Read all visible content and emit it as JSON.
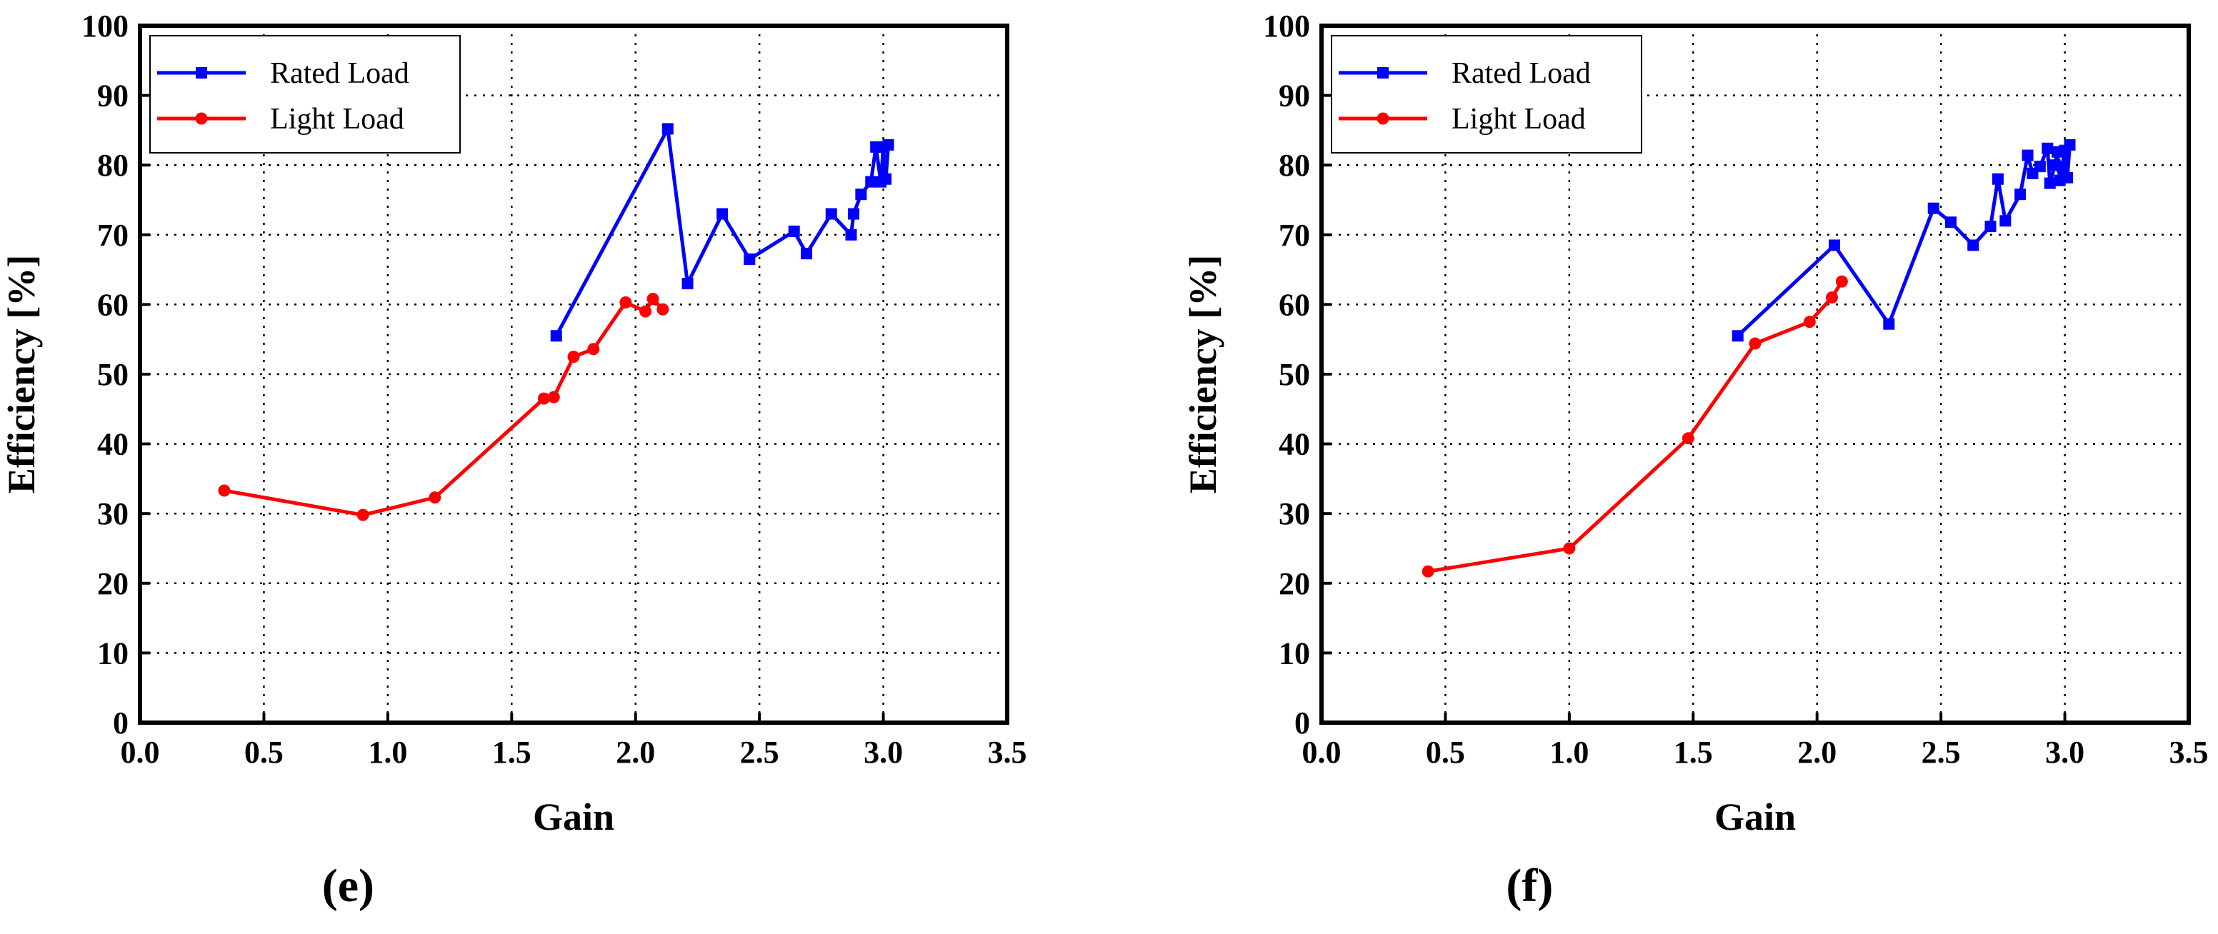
{
  "chart_data": [
    {
      "type": "line",
      "panel_label": "(e)",
      "xlabel": "Gain",
      "ylabel": "Efficiency [%]",
      "xlim": [
        0.0,
        3.5
      ],
      "ylim": [
        0,
        100
      ],
      "xticks": [
        "0.0",
        "0.5",
        "1.0",
        "1.5",
        "2.0",
        "2.5",
        "3.0",
        "3.5"
      ],
      "yticks": [
        "0",
        "10",
        "20",
        "30",
        "40",
        "50",
        "60",
        "70",
        "80",
        "90",
        "100"
      ],
      "grid": true,
      "legend_position": "top-left",
      "series": [
        {
          "name": "Rated Load",
          "color": "#0000ff",
          "marker": "square",
          "x": [
            1.68,
            2.13,
            2.21,
            2.35,
            2.46,
            2.64,
            2.69,
            2.79,
            2.87,
            2.88,
            2.91,
            2.95,
            2.97,
            2.99,
            3.0,
            3.01,
            3.02
          ],
          "y": [
            55.5,
            85.2,
            63.0,
            73.0,
            66.5,
            70.5,
            67.3,
            73.0,
            70.0,
            73.0,
            75.8,
            77.6,
            82.6,
            77.6,
            82.6,
            78.0,
            82.9
          ]
        },
        {
          "name": "Light Load",
          "color": "#ff0000",
          "marker": "circle",
          "x": [
            0.34,
            0.9,
            1.19,
            1.63,
            1.67,
            1.75,
            1.83,
            1.96,
            2.04,
            2.07,
            2.11
          ],
          "y": [
            33.3,
            29.8,
            32.3,
            46.5,
            46.7,
            52.5,
            53.6,
            60.3,
            59.0,
            60.8,
            59.3
          ]
        }
      ]
    },
    {
      "type": "line",
      "panel_label": "(f)",
      "xlabel": "Gain",
      "ylabel": "Efficiency [%]",
      "xlim": [
        0.0,
        3.5
      ],
      "ylim": [
        0,
        100
      ],
      "xticks": [
        "0.0",
        "0.5",
        "1.0",
        "1.5",
        "2.0",
        "2.5",
        "3.0",
        "3.5"
      ],
      "yticks": [
        "0",
        "10",
        "20",
        "30",
        "40",
        "50",
        "60",
        "70",
        "80",
        "90",
        "100"
      ],
      "grid": true,
      "legend_position": "top-left",
      "series": [
        {
          "name": "Rated Load",
          "color": "#0000ff",
          "marker": "square",
          "x": [
            1.68,
            2.07,
            2.29,
            2.47,
            2.54,
            2.63,
            2.7,
            2.73,
            2.76,
            2.82,
            2.85,
            2.87,
            2.9,
            2.93,
            2.94,
            2.96,
            2.97,
            2.98,
            2.99,
            3.0,
            3.01,
            3.02
          ],
          "y": [
            55.5,
            68.5,
            57.2,
            73.8,
            71.8,
            68.5,
            71.2,
            78.0,
            72.0,
            75.8,
            81.4,
            78.8,
            79.8,
            82.4,
            77.4,
            80.0,
            81.9,
            77.8,
            79.8,
            82.1,
            78.2,
            82.9
          ]
        },
        {
          "name": "Light Load",
          "color": "#ff0000",
          "marker": "circle",
          "x": [
            0.43,
            1.0,
            1.48,
            1.75,
            1.97,
            2.06,
            2.1
          ],
          "y": [
            21.7,
            25.0,
            40.8,
            54.4,
            57.5,
            61.0,
            63.3
          ]
        }
      ]
    }
  ]
}
